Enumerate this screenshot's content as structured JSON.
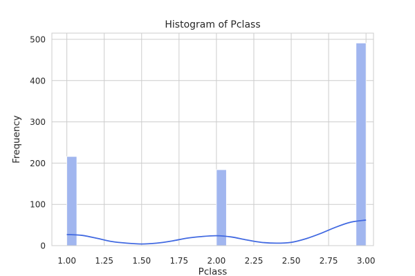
{
  "chart_data": {
    "type": "bar",
    "title": "Histogram of Pclass",
    "xlabel": "Pclass",
    "ylabel": "Frequency",
    "xlim": [
      0.9,
      3.05
    ],
    "ylim": [
      0,
      515
    ],
    "xticks": [
      "1.00",
      "1.25",
      "1.50",
      "1.75",
      "2.00",
      "2.25",
      "2.50",
      "2.75",
      "3.00"
    ],
    "yticks": [
      "0",
      "100",
      "200",
      "300",
      "400",
      "500"
    ],
    "grid": true,
    "bars": [
      {
        "x0": 1.0,
        "x1": 1.0667,
        "value": 216
      },
      {
        "x0": 2.0,
        "x1": 2.0667,
        "value": 184
      },
      {
        "x0": 2.9333,
        "x1": 3.0,
        "value": 491
      }
    ],
    "kde": {
      "x": [
        1.0,
        1.1,
        1.2,
        1.3,
        1.4,
        1.5,
        1.6,
        1.7,
        1.8,
        1.9,
        2.0,
        2.1,
        2.2,
        2.3,
        2.4,
        2.5,
        2.6,
        2.7,
        2.8,
        2.9,
        3.0
      ],
      "y": [
        27,
        25,
        18,
        10,
        6,
        4,
        6,
        11,
        18,
        22,
        24,
        21,
        14,
        8,
        6,
        8,
        17,
        30,
        45,
        57,
        62
      ]
    },
    "colors": {
      "bar_fill": "#a1b6ef",
      "bar_edge": "#ffffff",
      "kde_line": "#4169e1",
      "grid": "#cccccc",
      "frame": "#cccccc"
    }
  }
}
